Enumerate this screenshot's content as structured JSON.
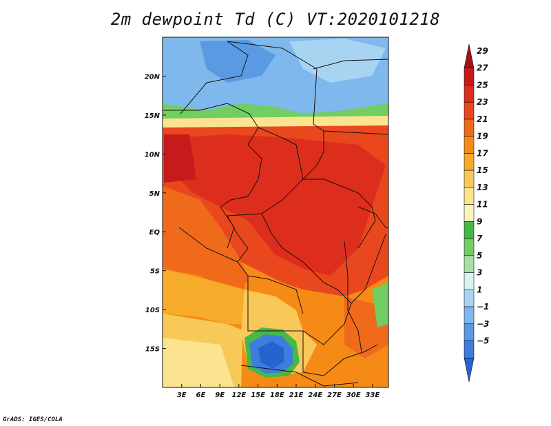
{
  "title": "2m dewpoint Td (C) VT:2020101218",
  "credit": "GrADS: IGES/COLA",
  "map": {
    "lon_range": [
      0,
      35.5
    ],
    "lat_range": [
      -20,
      25
    ],
    "lon_ticks": [
      "3E",
      "6E",
      "9E",
      "12E",
      "15E",
      "18E",
      "21E",
      "24E",
      "27E",
      "30E",
      "33E"
    ],
    "lon_values": [
      3,
      6,
      9,
      12,
      15,
      18,
      21,
      24,
      27,
      30,
      33
    ],
    "lat_ticks": [
      "20N",
      "15N",
      "10N",
      "5N",
      "EQ",
      "5S",
      "10S",
      "15S"
    ],
    "lat_values": [
      20,
      15,
      10,
      5,
      0,
      -5,
      -10,
      -15
    ]
  },
  "colorbar": {
    "labels": [
      "29",
      "27",
      "25",
      "23",
      "21",
      "19",
      "17",
      "15",
      "13",
      "11",
      "9",
      "7",
      "5",
      "3",
      "1",
      "−1",
      "−3",
      "−5"
    ],
    "colors": [
      "#a50f15",
      "#c51b1b",
      "#dd2e1d",
      "#e9481f",
      "#f06a1c",
      "#f58b16",
      "#f7ab2a",
      "#f8c859",
      "#fbe38f",
      "#fbf4c0",
      "#46b846",
      "#72cd62",
      "#a7e0a0",
      "#d6f3f2",
      "#a8d4f2",
      "#7fb8ec",
      "#5a9ae2",
      "#3f7ddc",
      "#2563d0"
    ]
  }
}
